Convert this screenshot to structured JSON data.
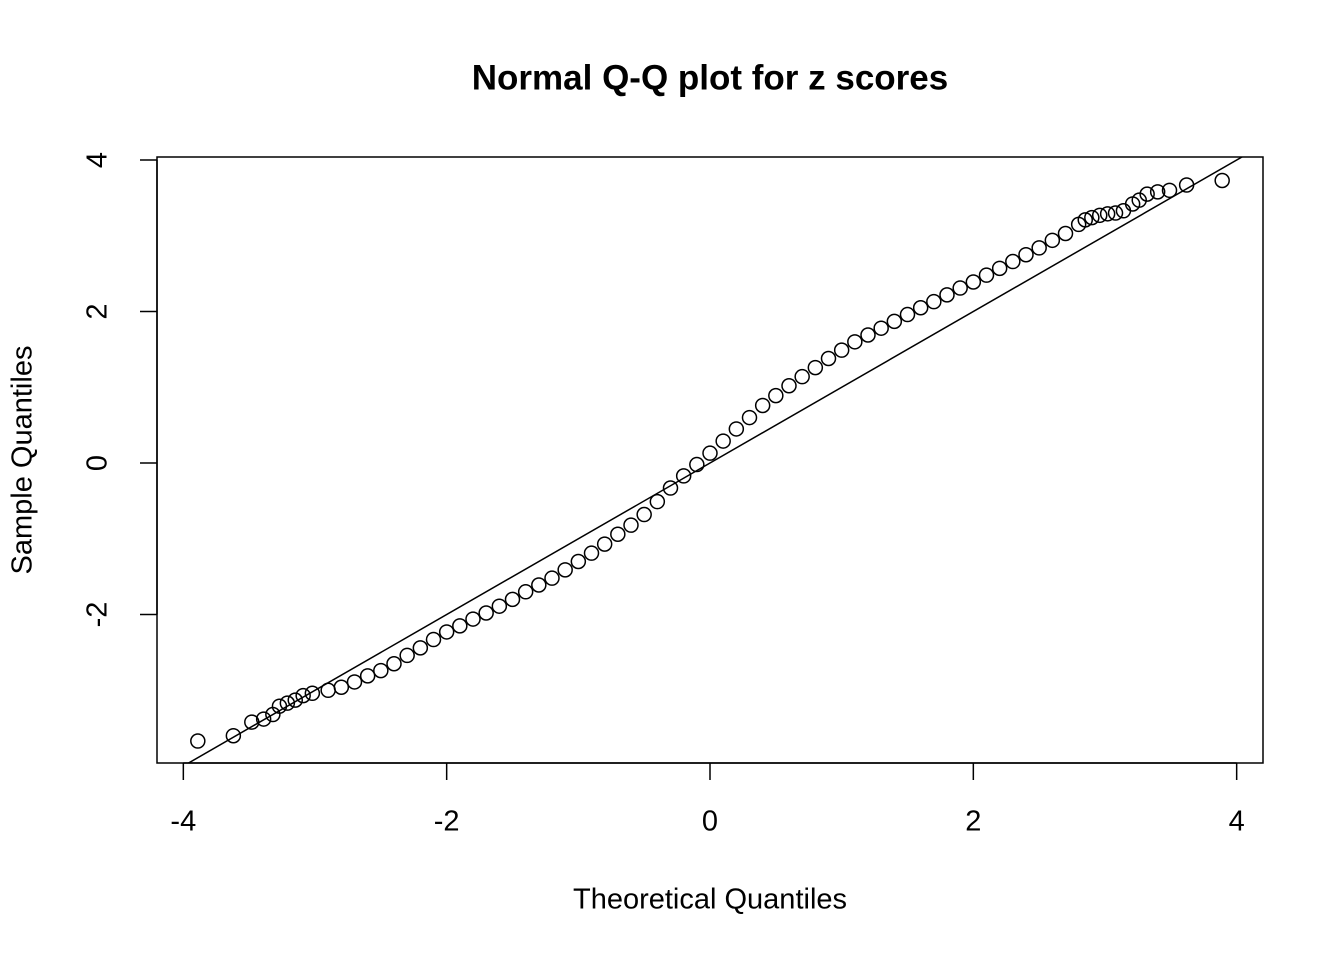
{
  "chart_data": {
    "type": "scatter",
    "title": "Normal Q-Q plot for z scores",
    "x_label": "Theoretical Quantiles",
    "y_label": "Sample Quantiles",
    "xlim": [
      -4.2,
      4.2
    ],
    "ylim": [
      -3.96,
      4.04
    ],
    "xticks": [
      -4,
      -2,
      0,
      2,
      4
    ],
    "yticks": [
      -2,
      0,
      2,
      4
    ],
    "color": "#000000",
    "reference_line": {
      "slope": 1,
      "intercept": 0
    },
    "x": [
      -3.89,
      -3.62,
      -3.48,
      -3.39,
      -3.32,
      -3.27,
      -3.21,
      -3.15,
      -3.09,
      -3.02,
      -2.9,
      -2.8,
      -2.7,
      -2.6,
      -2.5,
      -2.4,
      -2.3,
      -2.2,
      -2.1,
      -2.0,
      -1.9,
      -1.8,
      -1.7,
      -1.6,
      -1.5,
      -1.4,
      -1.3,
      -1.2,
      -1.1,
      -1.0,
      -0.9,
      -0.8,
      -0.7,
      -0.6,
      -0.5,
      -0.4,
      -0.3,
      -0.2,
      -0.1,
      0.0,
      0.1,
      0.2,
      0.3,
      0.4,
      0.5,
      0.6,
      0.7,
      0.8,
      0.9,
      1.0,
      1.1,
      1.2,
      1.3,
      1.4,
      1.5,
      1.6,
      1.7,
      1.8,
      1.9,
      2.0,
      2.1,
      2.2,
      2.3,
      2.4,
      2.5,
      2.6,
      2.7,
      2.8,
      2.85,
      2.9,
      2.96,
      3.02,
      3.08,
      3.14,
      3.21,
      3.26,
      3.32,
      3.4,
      3.49,
      3.62,
      3.89
    ],
    "y": [
      -3.67,
      -3.6,
      -3.42,
      -3.38,
      -3.32,
      -3.21,
      -3.17,
      -3.13,
      -3.07,
      -3.04,
      -3.0,
      -2.96,
      -2.89,
      -2.81,
      -2.74,
      -2.65,
      -2.54,
      -2.44,
      -2.33,
      -2.23,
      -2.15,
      -2.06,
      -1.98,
      -1.89,
      -1.8,
      -1.7,
      -1.61,
      -1.52,
      -1.41,
      -1.3,
      -1.19,
      -1.07,
      -0.94,
      -0.82,
      -0.68,
      -0.51,
      -0.33,
      -0.17,
      -0.02,
      0.13,
      0.29,
      0.45,
      0.6,
      0.76,
      0.89,
      1.02,
      1.14,
      1.26,
      1.38,
      1.49,
      1.6,
      1.69,
      1.78,
      1.87,
      1.96,
      2.05,
      2.13,
      2.22,
      2.31,
      2.39,
      2.48,
      2.57,
      2.66,
      2.75,
      2.84,
      2.94,
      3.03,
      3.15,
      3.21,
      3.24,
      3.27,
      3.29,
      3.3,
      3.33,
      3.42,
      3.47,
      3.55,
      3.58,
      3.6,
      3.67,
      3.73
    ]
  }
}
